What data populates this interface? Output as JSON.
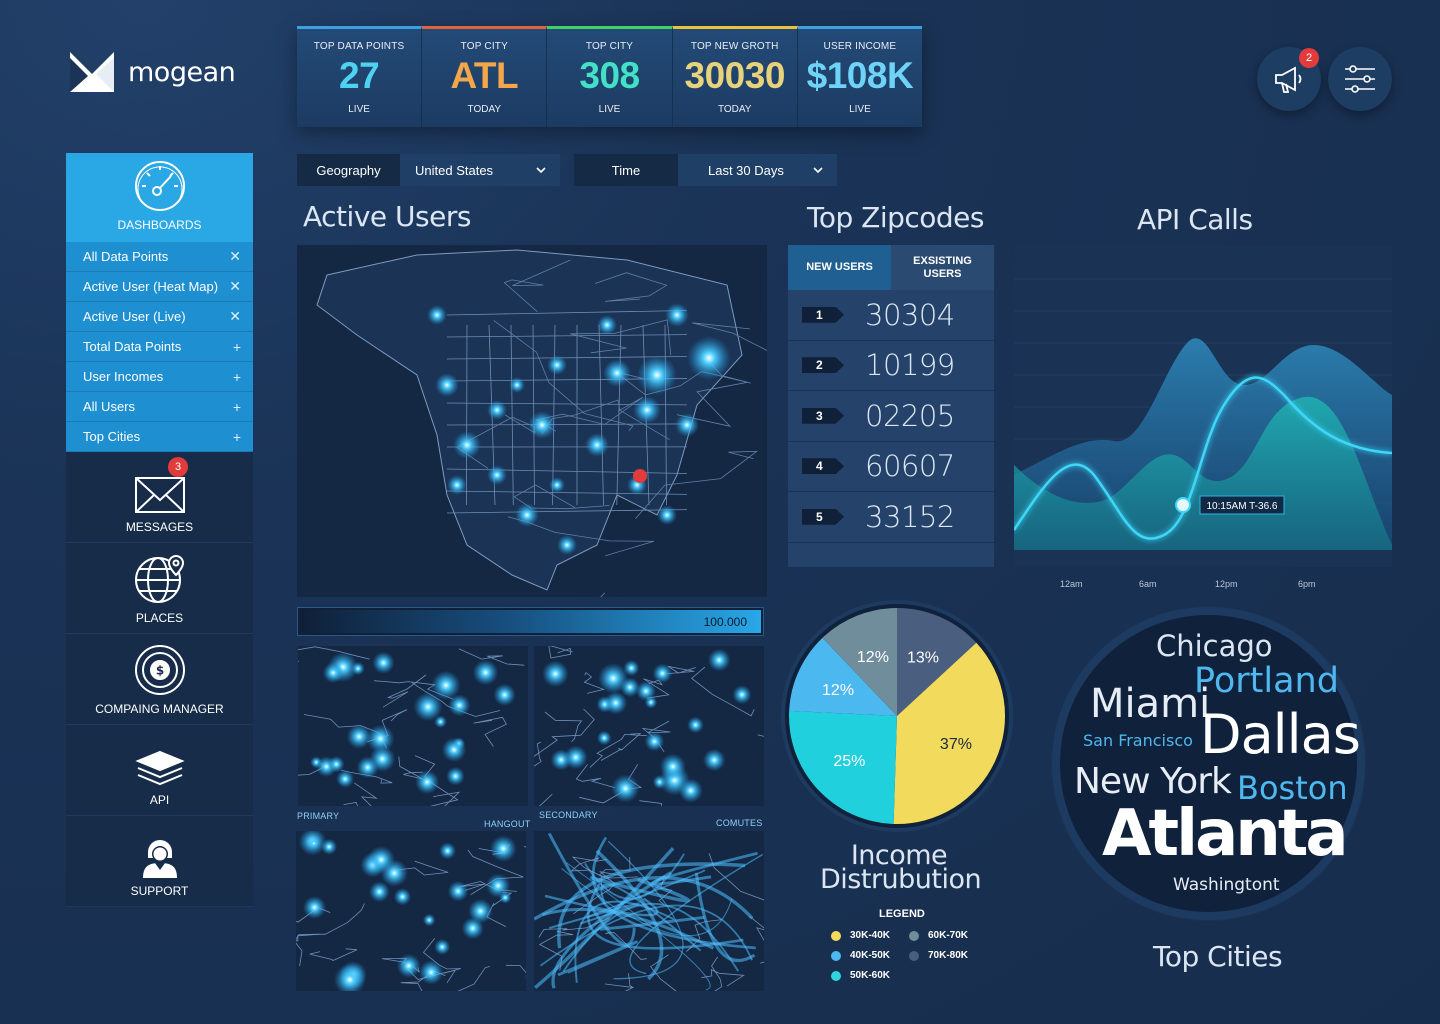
{
  "app": {
    "brand": "mogean"
  },
  "kpis": [
    {
      "label": "TOP DATA POINTS",
      "value": "27",
      "sub": "LIVE",
      "color": "#4fd1f2",
      "bar": "#3aa0e0"
    },
    {
      "label": "TOP CITY",
      "value": "ATL",
      "sub": "TODAY",
      "color": "#f3a64a",
      "bar": "#e0643a"
    },
    {
      "label": "TOP CITY",
      "value": "308",
      "sub": "LIVE",
      "color": "#43e0c8",
      "bar": "#3fd06a"
    },
    {
      "label": "TOP NEW GROTH",
      "value": "30030",
      "sub": "TODAY",
      "color": "#e8d27a",
      "bar": "#e8c23a"
    },
    {
      "label": "USER INCOME",
      "value": "$108K",
      "sub": "LIVE",
      "color": "#6fd3f7",
      "bar": "#3aa0e0"
    }
  ],
  "topbar": {
    "notification_count": "2"
  },
  "sidebar": {
    "dashboards_label": "DASHBOARDS",
    "sub_items": [
      {
        "label": "All Data Points",
        "sym": "✕"
      },
      {
        "label": "Active User (Heat Map)",
        "sym": "✕"
      },
      {
        "label": "Active User (Live)",
        "sym": "✕"
      },
      {
        "label": "Total Data Points",
        "sym": "+"
      },
      {
        "label": "User Incomes",
        "sym": "+"
      },
      {
        "label": "All Users",
        "sym": "+"
      },
      {
        "label": "Top Cities",
        "sym": "+"
      }
    ],
    "messages_label": "MESSAGES",
    "messages_count": "3",
    "places_label": "PLACES",
    "campaign_label": "COMPAING MANAGER",
    "api_label": "API",
    "support_label": "SUPPORT"
  },
  "filters": {
    "geo_label": "Geography",
    "geo_value": "United States",
    "time_label": "Time",
    "time_value": "Last 30 Days"
  },
  "active_users": {
    "title": "Active Users",
    "progress_value": "100.000",
    "mini_labels": {
      "primary": "PRIMARY",
      "hangout": "HANGOUT",
      "secondary": "SECONDARY",
      "comutes": "COMUTES"
    }
  },
  "zipcodes": {
    "title": "Top Zipcodes",
    "tab_new": "NEW USERS",
    "tab_existing_1": "EXSISTING",
    "tab_existing_2": "USERS",
    "rows": [
      {
        "rank": "1",
        "zip": "30304"
      },
      {
        "rank": "2",
        "zip": "10199"
      },
      {
        "rank": "3",
        "zip": "02205"
      },
      {
        "rank": "4",
        "zip": "60607"
      },
      {
        "rank": "5",
        "zip": "33152"
      }
    ]
  },
  "api_calls": {
    "title": "API Calls",
    "tooltip": "10:15AM T-36.6",
    "x_ticks": [
      "12am",
      "6am",
      "12pm",
      "6pm"
    ]
  },
  "income": {
    "title_1": "Income",
    "title_2": "Distrubution",
    "legend_title": "LEGEND",
    "legend": [
      {
        "label": "30K-40K",
        "color": "#f1da5c"
      },
      {
        "label": "60K-70K",
        "color": "#6f8d9a"
      },
      {
        "label": "40K-50K",
        "color": "#4cb8f0"
      },
      {
        "label": "70K-80K",
        "color": "#4a5f7f"
      },
      {
        "label": "50K-60K",
        "color": "#2fd4dc"
      }
    ]
  },
  "chart_data": {
    "type": "pie",
    "labels": [
      "70K-80K",
      "30K-40K",
      "50K-60K",
      "40K-50K",
      "60K-70K"
    ],
    "values": [
      13,
      37,
      25,
      12,
      12
    ],
    "colors": [
      "#4a5f7f",
      "#f1da5c",
      "#20d0dd",
      "#4cb8f0",
      "#6f8d9a"
    ],
    "value_labels": [
      "13%",
      "37%",
      "25%",
      "12%",
      "12%"
    ]
  },
  "top_cities": {
    "title": "Top Cities",
    "words": [
      "Chicago",
      "Portland",
      "Miami",
      "Dallas",
      "San Francisco",
      "New York",
      "Boston",
      "Atlanta",
      "Washingtont"
    ]
  }
}
